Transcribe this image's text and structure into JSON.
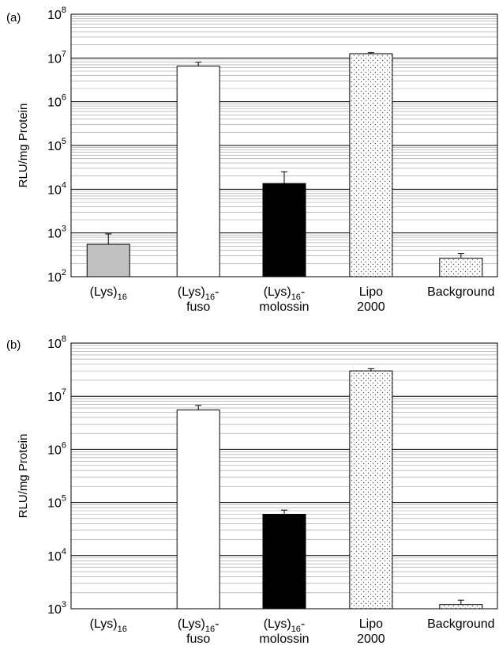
{
  "chart_data": [
    {
      "type": "bar",
      "panel_label": "(a)",
      "ylabel": "RLU/mg Protein",
      "yscale": "log",
      "ylim_exp": [
        2,
        8
      ],
      "y_ticks": [
        {
          "base": "10",
          "exp": "2"
        },
        {
          "base": "10",
          "exp": "3"
        },
        {
          "base": "10",
          "exp": "4"
        },
        {
          "base": "10",
          "exp": "5"
        },
        {
          "base": "10",
          "exp": "6"
        },
        {
          "base": "10",
          "exp": "7"
        },
        {
          "base": "10",
          "exp": "8"
        }
      ],
      "grid": true,
      "categories": [
        {
          "line1": "(Lys)",
          "sub": "16",
          "suffix": "",
          "line2": ""
        },
        {
          "line1": "(Lys)",
          "sub": "16",
          "suffix": "-",
          "line2": "fuso"
        },
        {
          "line1": "(Lys)",
          "sub": "16",
          "suffix": "-",
          "line2": "molossin"
        },
        {
          "line1": "Lipo",
          "sub": "",
          "suffix": "",
          "line2": "2000"
        },
        {
          "line1": "Background",
          "sub": "",
          "suffix": "",
          "line2": ""
        }
      ],
      "values": [
        550,
        6500000,
        13500,
        12500000,
        265
      ],
      "error_upper": [
        950,
        8000000,
        25000,
        13200000,
        340
      ],
      "bar_styles": [
        "gray",
        "white",
        "black",
        "dotted",
        "dotted"
      ]
    },
    {
      "type": "bar",
      "panel_label": "(b)",
      "ylabel": "RLU/mg Protein",
      "yscale": "log",
      "ylim_exp": [
        3,
        8
      ],
      "y_ticks": [
        {
          "base": "10",
          "exp": "3"
        },
        {
          "base": "10",
          "exp": "4"
        },
        {
          "base": "10",
          "exp": "5"
        },
        {
          "base": "10",
          "exp": "6"
        },
        {
          "base": "10",
          "exp": "7"
        },
        {
          "base": "10",
          "exp": "8"
        }
      ],
      "grid": true,
      "categories": [
        {
          "line1": "(Lys)",
          "sub": "16",
          "suffix": "",
          "line2": ""
        },
        {
          "line1": "(Lys)",
          "sub": "16",
          "suffix": "-",
          "line2": "fuso"
        },
        {
          "line1": "(Lys)",
          "sub": "16",
          "suffix": "-",
          "line2": "molossin"
        },
        {
          "line1": "Lipo",
          "sub": "",
          "suffix": "",
          "line2": "2000"
        },
        {
          "line1": "Background",
          "sub": "",
          "suffix": "",
          "line2": ""
        }
      ],
      "values": [
        null,
        5500000,
        60000,
        30000000,
        1200
      ],
      "error_upper": [
        null,
        6700000,
        72000,
        33000000,
        1450
      ],
      "bar_styles": [
        "gray",
        "white",
        "black",
        "dotted",
        "dotted"
      ]
    }
  ]
}
